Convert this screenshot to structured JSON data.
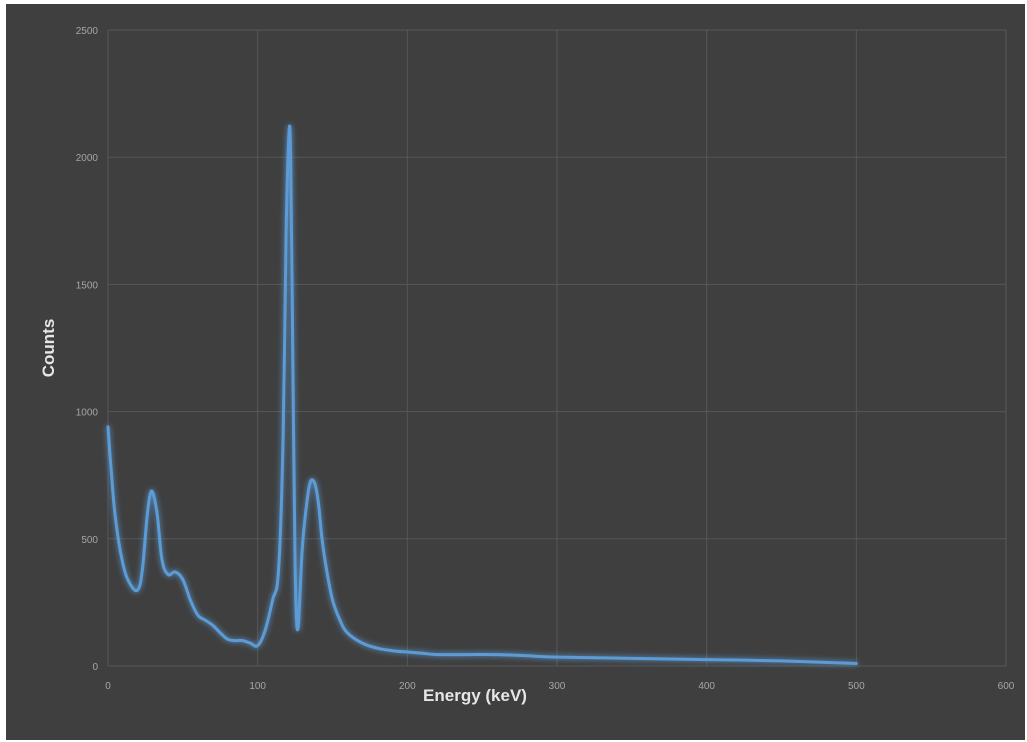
{
  "chart_data": {
    "type": "line",
    "xlabel": "Energy (keV)",
    "ylabel": "Counts",
    "xlim": [
      0,
      600
    ],
    "ylim": [
      0,
      2500
    ],
    "x_ticks": [
      0,
      100,
      200,
      300,
      400,
      500,
      600
    ],
    "y_ticks": [
      0,
      500,
      1000,
      1500,
      2000,
      2500
    ],
    "grid": true,
    "legend": "none",
    "line_color": "#5b9bd5",
    "background_color": "#3f3f3f",
    "series": [
      {
        "x": [
          0,
          2,
          5,
          10,
          15,
          20,
          23,
          26,
          28,
          30,
          33,
          36,
          40,
          45,
          50,
          55,
          60,
          65,
          70,
          75,
          80,
          85,
          90,
          95,
          100,
          105,
          110,
          114,
          117,
          119,
          121,
          122,
          123,
          124,
          125,
          126,
          127,
          128,
          130,
          133,
          135,
          137,
          139,
          141,
          143,
          146,
          150,
          155,
          160,
          170,
          180,
          190,
          200,
          210,
          220,
          240,
          260,
          280,
          300,
          350,
          400,
          450,
          500
        ],
        "y": [
          940,
          780,
          580,
          400,
          320,
          300,
          380,
          580,
          670,
          680,
          590,
          420,
          360,
          370,
          340,
          260,
          200,
          180,
          160,
          130,
          105,
          100,
          100,
          90,
          80,
          140,
          260,
          380,
          900,
          1700,
          2100,
          2000,
          1500,
          900,
          400,
          180,
          150,
          250,
          480,
          650,
          720,
          730,
          700,
          620,
          500,
          380,
          260,
          180,
          130,
          90,
          70,
          60,
          55,
          50,
          45,
          45,
          45,
          40,
          35,
          30,
          25,
          20,
          10
        ]
      }
    ]
  }
}
